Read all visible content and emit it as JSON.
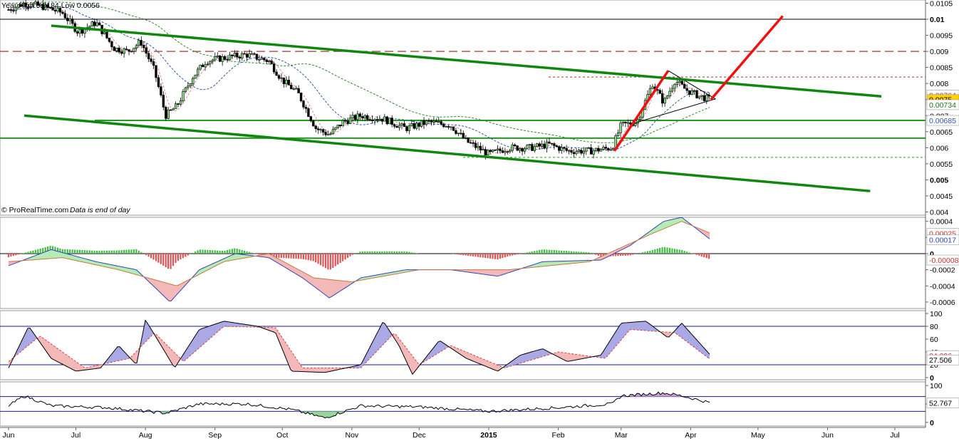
{
  "header": {
    "title": "Year High 0.0184 Low 0.0056"
  },
  "footer": {
    "source": "© ProRealTime.com",
    "note": "Data is end of day"
  },
  "colors": {
    "channel": "#0e870e",
    "support": "#229922",
    "forecast_arrow": "#ee1111",
    "resistance_dashed": "#aa3333",
    "bull_candle": "#88dd88",
    "bear_candle": "#000000",
    "ma_fast": "#e88888",
    "ma_mid": "#3355aa",
    "ma_slow": "#338833",
    "macd_pos": "#44bb44",
    "macd_neg": "#dd5555",
    "highlight_tag": "#ffd200",
    "band_line": "#1a1a8c"
  },
  "chart_data": [
    {
      "type": "candlestick",
      "panel": "price",
      "title": "Year High 0.0184 Low 0.0056",
      "ylim": [
        0.0039,
        0.0106
      ],
      "y_ticks": [
        "0.0105",
        "0.01",
        "0.0095",
        "0.009",
        "0.0085",
        "0.008",
        "0.0075",
        "0.007",
        "0.0065",
        "0.006",
        "0.0055",
        "0.005",
        "0.0045",
        "0.004"
      ],
      "x_tick_labels": [
        "Jun",
        "Jul",
        "Aug",
        "Sep",
        "Oct",
        "Nov",
        "Dec",
        "2015",
        "Feb",
        "Mar",
        "Apr",
        "May",
        "Jun",
        "Jul"
      ],
      "close_path": [
        {
          "x": "2014-06-01",
          "y": 0.0103
        },
        {
          "x": "2014-06-08",
          "y": 0.0105
        },
        {
          "x": "2014-06-16",
          "y": 0.0104
        },
        {
          "x": "2014-06-25",
          "y": 0.0102
        },
        {
          "x": "2014-07-02",
          "y": 0.0096
        },
        {
          "x": "2014-07-10",
          "y": 0.0099
        },
        {
          "x": "2014-07-18",
          "y": 0.0091
        },
        {
          "x": "2014-07-24",
          "y": 0.009
        },
        {
          "x": "2014-07-30",
          "y": 0.0093
        },
        {
          "x": "2014-08-05",
          "y": 0.0084
        },
        {
          "x": "2014-08-10",
          "y": 0.007
        },
        {
          "x": "2014-08-15",
          "y": 0.0073
        },
        {
          "x": "2014-08-22",
          "y": 0.0082
        },
        {
          "x": "2014-08-28",
          "y": 0.0087
        },
        {
          "x": "2014-09-05",
          "y": 0.0088
        },
        {
          "x": "2014-09-15",
          "y": 0.0089
        },
        {
          "x": "2014-09-25",
          "y": 0.0087
        },
        {
          "x": "2014-10-01",
          "y": 0.0081
        },
        {
          "x": "2014-10-08",
          "y": 0.0077
        },
        {
          "x": "2014-10-16",
          "y": 0.0066
        },
        {
          "x": "2014-10-22",
          "y": 0.0064
        },
        {
          "x": "2014-10-28",
          "y": 0.0068
        },
        {
          "x": "2014-11-05",
          "y": 0.007
        },
        {
          "x": "2014-11-15",
          "y": 0.0069
        },
        {
          "x": "2014-11-25",
          "y": 0.0066
        },
        {
          "x": "2014-12-05",
          "y": 0.0068
        },
        {
          "x": "2014-12-15",
          "y": 0.0067
        },
        {
          "x": "2014-12-22",
          "y": 0.0062
        },
        {
          "x": "2015-01-01",
          "y": 0.0058
        },
        {
          "x": "2015-01-10",
          "y": 0.006
        },
        {
          "x": "2015-01-20",
          "y": 0.006
        },
        {
          "x": "2015-01-28",
          "y": 0.0061
        },
        {
          "x": "2015-02-05",
          "y": 0.0059
        },
        {
          "x": "2015-02-15",
          "y": 0.0059
        },
        {
          "x": "2015-02-25",
          "y": 0.006
        },
        {
          "x": "2015-03-01",
          "y": 0.0067
        },
        {
          "x": "2015-03-08",
          "y": 0.0068
        },
        {
          "x": "2015-03-15",
          "y": 0.008
        },
        {
          "x": "2015-03-20",
          "y": 0.0074
        },
        {
          "x": "2015-03-25",
          "y": 0.0081
        },
        {
          "x": "2015-03-30",
          "y": 0.0078
        },
        {
          "x": "2015-04-05",
          "y": 0.0076
        },
        {
          "x": "2015-04-10",
          "y": 0.0075
        }
      ],
      "channel_upper": [
        {
          "x": "2014-06-20",
          "y": 0.0098
        },
        {
          "x": "2015-06-25",
          "y": 0.0076
        }
      ],
      "channel_lower": [
        {
          "x": "2014-06-08",
          "y": 0.007
        },
        {
          "x": "2015-06-20",
          "y": 0.00465
        }
      ],
      "support_levels": [
        0.00685,
        0.0063
      ],
      "resistance_dashed": 0.009,
      "reference_lines": [
        0.01,
        0.0082,
        0.0057
      ],
      "forecast_arrows": [
        [
          {
            "x": "2015-02-26",
            "y": 0.0059
          },
          {
            "x": "2015-03-22",
            "y": 0.0084
          }
        ],
        [
          {
            "x": "2015-04-10",
            "y": 0.0075
          },
          {
            "x": "2015-05-12",
            "y": 0.0101
          }
        ]
      ],
      "price_tags": [
        {
          "label": "0.00764",
          "value": 0.00764
        },
        {
          "label": "0.0075",
          "value": 0.0075,
          "highlight": true
        },
        {
          "label": "0.00734",
          "value": 0.00734
        },
        {
          "label": "0.00685",
          "value": 0.00685
        }
      ]
    },
    {
      "type": "histogram",
      "panel": "macd",
      "ylim": [
        -0.00068,
        0.00045
      ],
      "y_ticks": [
        "0.0004",
        "0.0002",
        "0",
        "-0.0002",
        "-0.0004",
        "-0.0006"
      ],
      "price_tags": [
        {
          "label": "0.00025",
          "value": 0.00025
        },
        {
          "label": "0.00017",
          "value": 0.00017
        },
        {
          "label": "-0.00008",
          "value": -8e-05
        }
      ],
      "macd_line": [
        {
          "x": "2014-06-01",
          "y": -0.00015
        },
        {
          "x": "2014-06-20",
          "y": 5e-05
        },
        {
          "x": "2014-07-10",
          "y": -0.0001
        },
        {
          "x": "2014-07-28",
          "y": -0.0002
        },
        {
          "x": "2014-08-12",
          "y": -0.0006
        },
        {
          "x": "2014-08-25",
          "y": -0.0002
        },
        {
          "x": "2014-09-10",
          "y": 0.0
        },
        {
          "x": "2014-09-25",
          "y": -5e-05
        },
        {
          "x": "2014-10-10",
          "y": -0.0003
        },
        {
          "x": "2014-10-22",
          "y": -0.00055
        },
        {
          "x": "2014-11-05",
          "y": -0.0003
        },
        {
          "x": "2014-11-25",
          "y": -0.0002
        },
        {
          "x": "2014-12-15",
          "y": -0.0002
        },
        {
          "x": "2015-01-05",
          "y": -0.00028
        },
        {
          "x": "2015-01-25",
          "y": -0.0001
        },
        {
          "x": "2015-02-20",
          "y": -8e-05
        },
        {
          "x": "2015-03-05",
          "y": 0.0001
        },
        {
          "x": "2015-03-20",
          "y": 0.0004
        },
        {
          "x": "2015-03-28",
          "y": 0.00045
        },
        {
          "x": "2015-04-10",
          "y": 0.00017
        }
      ],
      "signal_line": [
        {
          "x": "2014-06-01",
          "y": -0.0001
        },
        {
          "x": "2014-06-25",
          "y": -5e-05
        },
        {
          "x": "2014-07-20",
          "y": -0.0002
        },
        {
          "x": "2014-08-15",
          "y": -0.0004
        },
        {
          "x": "2014-09-05",
          "y": -0.0001
        },
        {
          "x": "2014-09-25",
          "y": 0.0
        },
        {
          "x": "2014-10-15",
          "y": -0.0003
        },
        {
          "x": "2014-11-01",
          "y": -0.00035
        },
        {
          "x": "2014-12-01",
          "y": -0.0002
        },
        {
          "x": "2015-01-10",
          "y": -0.0002
        },
        {
          "x": "2015-02-15",
          "y": -0.0001
        },
        {
          "x": "2015-03-15",
          "y": 0.00025
        },
        {
          "x": "2015-03-28",
          "y": 0.0004
        },
        {
          "x": "2015-04-10",
          "y": 0.00025
        }
      ]
    },
    {
      "type": "line",
      "panel": "stochastic",
      "ylim": [
        0,
        100
      ],
      "y_ticks": [
        "100",
        "80",
        "60",
        "40",
        "20",
        "0"
      ],
      "bands": [
        80,
        20
      ],
      "price_tags": [
        {
          "label": "34.296",
          "value": 34.296
        },
        {
          "label": "27.506",
          "value": 27.506
        }
      ],
      "k_line": [
        {
          "x": "2014-06-01",
          "y": 15
        },
        {
          "x": "2014-06-10",
          "y": 80
        },
        {
          "x": "2014-06-20",
          "y": 30
        },
        {
          "x": "2014-07-01",
          "y": 10
        },
        {
          "x": "2014-07-12",
          "y": 15
        },
        {
          "x": "2014-07-20",
          "y": 50
        },
        {
          "x": "2014-07-28",
          "y": 20
        },
        {
          "x": "2014-08-01",
          "y": 90
        },
        {
          "x": "2014-08-08",
          "y": 50
        },
        {
          "x": "2014-08-14",
          "y": 15
        },
        {
          "x": "2014-08-25",
          "y": 75
        },
        {
          "x": "2014-09-05",
          "y": 88
        },
        {
          "x": "2014-09-20",
          "y": 80
        },
        {
          "x": "2014-09-28",
          "y": 70
        },
        {
          "x": "2014-10-05",
          "y": 10
        },
        {
          "x": "2014-10-20",
          "y": 8
        },
        {
          "x": "2014-11-05",
          "y": 20
        },
        {
          "x": "2014-11-15",
          "y": 88
        },
        {
          "x": "2014-11-22",
          "y": 50
        },
        {
          "x": "2014-11-28",
          "y": 5
        },
        {
          "x": "2014-12-10",
          "y": 58
        },
        {
          "x": "2014-12-22",
          "y": 30
        },
        {
          "x": "2015-01-05",
          "y": 10
        },
        {
          "x": "2015-01-15",
          "y": 35
        },
        {
          "x": "2015-01-25",
          "y": 45
        },
        {
          "x": "2015-02-05",
          "y": 25
        },
        {
          "x": "2015-02-20",
          "y": 35
        },
        {
          "x": "2015-03-01",
          "y": 85
        },
        {
          "x": "2015-03-12",
          "y": 88
        },
        {
          "x": "2015-03-22",
          "y": 62
        },
        {
          "x": "2015-03-28",
          "y": 85
        },
        {
          "x": "2015-04-10",
          "y": 34.296
        }
      ],
      "d_line": [
        {
          "x": "2014-06-01",
          "y": 25
        },
        {
          "x": "2014-06-15",
          "y": 65
        },
        {
          "x": "2014-07-05",
          "y": 15
        },
        {
          "x": "2014-07-25",
          "y": 30
        },
        {
          "x": "2014-08-05",
          "y": 70
        },
        {
          "x": "2014-08-18",
          "y": 25
        },
        {
          "x": "2014-09-05",
          "y": 80
        },
        {
          "x": "2014-09-28",
          "y": 78
        },
        {
          "x": "2014-10-10",
          "y": 15
        },
        {
          "x": "2014-11-05",
          "y": 15
        },
        {
          "x": "2014-11-20",
          "y": 70
        },
        {
          "x": "2014-12-01",
          "y": 20
        },
        {
          "x": "2014-12-15",
          "y": 50
        },
        {
          "x": "2015-01-08",
          "y": 15
        },
        {
          "x": "2015-02-01",
          "y": 40
        },
        {
          "x": "2015-02-22",
          "y": 30
        },
        {
          "x": "2015-03-05",
          "y": 75
        },
        {
          "x": "2015-03-25",
          "y": 70
        },
        {
          "x": "2015-04-10",
          "y": 27.506
        }
      ]
    },
    {
      "type": "line",
      "panel": "rsi",
      "ylim": [
        -10,
        110
      ],
      "y_ticks": [
        "100",
        "50",
        "0"
      ],
      "bands": [
        70,
        30
      ],
      "price_tags": [
        {
          "label": "52.767",
          "value": 52.767
        }
      ],
      "rsi_line": [
        {
          "x": "2014-06-01",
          "y": 45
        },
        {
          "x": "2014-06-08",
          "y": 72
        },
        {
          "x": "2014-06-20",
          "y": 45
        },
        {
          "x": "2014-07-15",
          "y": 40
        },
        {
          "x": "2014-08-10",
          "y": 25
        },
        {
          "x": "2014-08-25",
          "y": 50
        },
        {
          "x": "2014-09-15",
          "y": 50
        },
        {
          "x": "2014-10-05",
          "y": 35
        },
        {
          "x": "2014-10-20",
          "y": 12
        },
        {
          "x": "2014-11-05",
          "y": 45
        },
        {
          "x": "2014-12-01",
          "y": 42
        },
        {
          "x": "2015-01-01",
          "y": 30
        },
        {
          "x": "2015-02-01",
          "y": 40
        },
        {
          "x": "2015-02-25",
          "y": 50
        },
        {
          "x": "2015-03-01",
          "y": 72
        },
        {
          "x": "2015-03-20",
          "y": 80
        },
        {
          "x": "2015-03-28",
          "y": 72
        },
        {
          "x": "2015-04-10",
          "y": 52.767
        }
      ]
    }
  ]
}
